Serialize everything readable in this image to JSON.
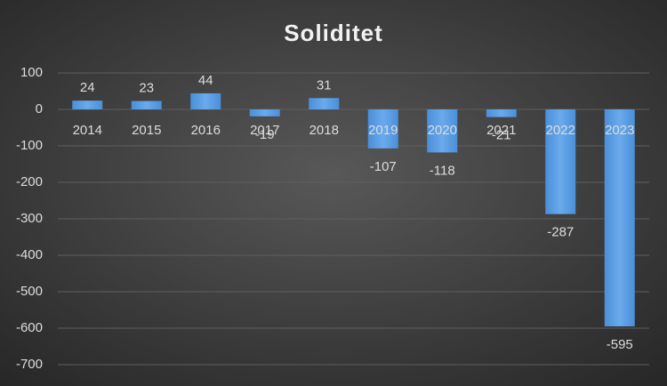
{
  "chart_data": {
    "type": "bar",
    "title": "Soliditet",
    "categories": [
      "2014",
      "2015",
      "2016",
      "2017",
      "2018",
      "2019",
      "2020",
      "2021",
      "2022",
      "2023"
    ],
    "values": [
      24,
      23,
      44,
      -19,
      31,
      -107,
      -118,
      -21,
      -287,
      -595
    ],
    "color": "#4a8fd8",
    "ylim": [
      -700,
      100
    ],
    "yticks": [
      100,
      0,
      -100,
      -200,
      -300,
      -400,
      -500,
      -600,
      -700
    ],
    "grid": true
  }
}
